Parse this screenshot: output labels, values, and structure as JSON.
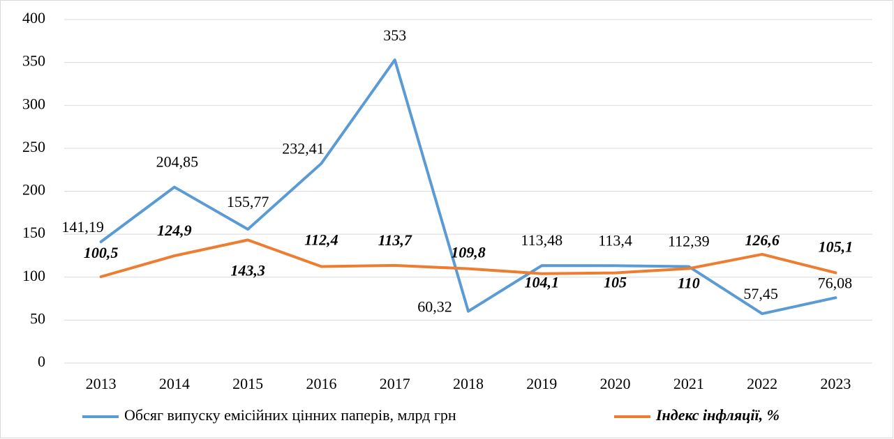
{
  "chart_data": {
    "type": "line",
    "categories": [
      "2013",
      "2014",
      "2015",
      "2016",
      "2017",
      "2018",
      "2019",
      "2020",
      "2021",
      "2022",
      "2023"
    ],
    "series": [
      {
        "name": "Обсяг випуску емісійних цінних паперів, млрд грн",
        "color": "#5b9bd5",
        "values": [
          141.19,
          204.85,
          155.77,
          232.41,
          353,
          60.32,
          113.48,
          113.4,
          112.39,
          57.45,
          76.08
        ],
        "value_labels": [
          "141,19",
          "204,85",
          "155,77",
          "232,41",
          "353",
          "60,32",
          "113,48",
          "113,4",
          "112,39",
          "57,45",
          "76,08"
        ]
      },
      {
        "name": "Індекс інфляції, %",
        "color": "#ed7d31",
        "values": [
          100.5,
          124.9,
          143.3,
          112.4,
          113.7,
          109.8,
          104.1,
          105,
          110,
          126.6,
          105.1
        ],
        "value_labels": [
          "100,5",
          "124,9",
          "143,3",
          "112,4",
          "113,7",
          "109,8",
          "104,1",
          "105",
          "110",
          "126,6",
          "105,1"
        ]
      }
    ],
    "ylim": [
      0,
      400
    ],
    "yticks": [
      0,
      50,
      100,
      150,
      200,
      250,
      300,
      350,
      400
    ],
    "grid": true,
    "legend": "bottom"
  }
}
